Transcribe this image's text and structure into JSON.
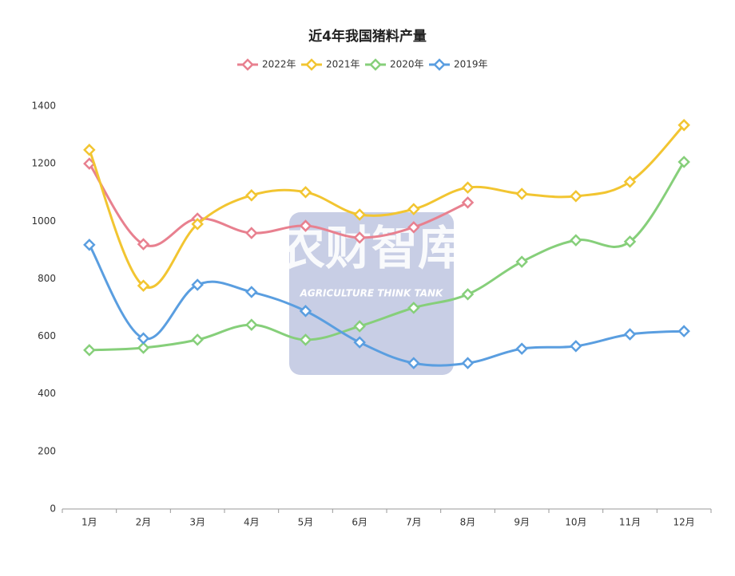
{
  "chart_data": {
    "type": "line",
    "title": "近4年我国猪料产量",
    "categories": [
      "1月",
      "2月",
      "3月",
      "4月",
      "5月",
      "6月",
      "7月",
      "8月",
      "9月",
      "10月",
      "11月",
      "12月"
    ],
    "series": [
      {
        "name": "2022年",
        "color": "#e8808f",
        "values": [
          1200,
          920,
          1009,
          959,
          984,
          943,
          979,
          1065,
          null,
          null,
          null,
          null
        ]
      },
      {
        "name": "2021年",
        "color": "#f2c531",
        "values": [
          1248,
          776,
          990,
          1090,
          1101,
          1023,
          1042,
          1117,
          1095,
          1087,
          1137,
          1334
        ]
      },
      {
        "name": "2020年",
        "color": "#86cf7a",
        "values": [
          552,
          560,
          588,
          640,
          588,
          635,
          699,
          746,
          859,
          934,
          929,
          1206
        ]
      },
      {
        "name": "2019年",
        "color": "#5a9ee0",
        "values": [
          918,
          593,
          779,
          754,
          688,
          579,
          507,
          507,
          557,
          566,
          607,
          618
        ]
      }
    ],
    "ylim": [
      0,
      1400
    ],
    "yticks": [
      0,
      200,
      400,
      600,
      800,
      1000,
      1200,
      1400
    ],
    "grid": false,
    "legend": "top",
    "watermark": {
      "title": "农财智库",
      "subtitle": "AGRICULTURE THINK TANK"
    }
  }
}
